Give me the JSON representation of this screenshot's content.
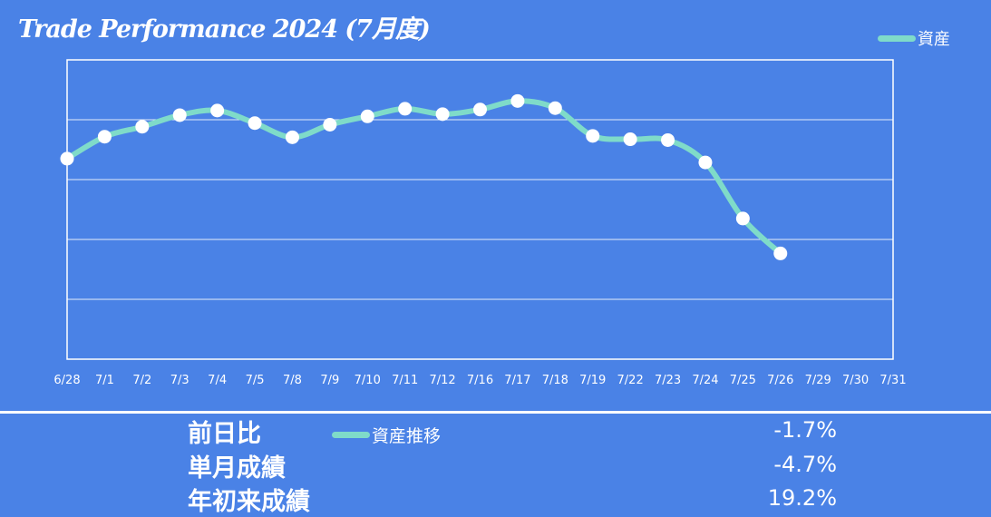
{
  "title": "Trade Performance 2024 (7月度)",
  "legend": {
    "label": "資産",
    "color": "#7fdbc9"
  },
  "chart_data": {
    "type": "line",
    "categories": [
      "6/28",
      "7/1",
      "7/2",
      "7/3",
      "7/4",
      "7/5",
      "7/8",
      "7/9",
      "7/10",
      "7/11",
      "7/12",
      "7/16",
      "7/17",
      "7/18",
      "7/19",
      "7/22",
      "7/23",
      "7/24",
      "7/25",
      "7/26",
      "7/29",
      "7/30",
      "7/31"
    ],
    "series": [
      {
        "name": "資産",
        "values": [
          50.5,
          61.5,
          66.5,
          72.3,
          74.6,
          68.3,
          61.2,
          67.5,
          71.7,
          75.5,
          72.8,
          75.1,
          79.4,
          75.8,
          61.9,
          60.2,
          59.8,
          48.6,
          20.5,
          3.0,
          null,
          null,
          null
        ]
      }
    ],
    "ylim": [
      -50,
      100
    ],
    "grid": true,
    "legend_position": "top-right",
    "line_color": "#7fdbc9",
    "marker_color": "#ffffff"
  },
  "summary": {
    "legend_label": "資産推移",
    "rows": [
      {
        "label": "前日比",
        "value": "-1.7%"
      },
      {
        "label": "単月成績",
        "value": "-4.7%"
      },
      {
        "label": "年初来成績",
        "value": "19.2%"
      }
    ]
  }
}
